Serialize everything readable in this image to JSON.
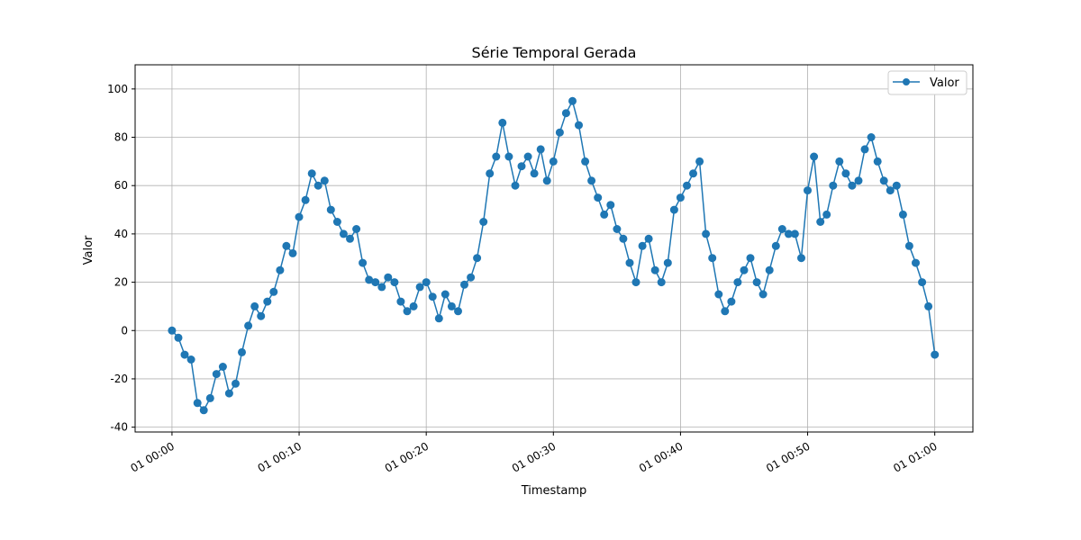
{
  "chart_data": {
    "type": "line",
    "title": "Série Temporal Gerada",
    "xlabel": "Timestamp",
    "ylabel": "Valor",
    "grid": true,
    "legend_position": "top-right",
    "color": "#1f77b4",
    "ylim": [
      -42,
      110
    ],
    "xlim_minutes": [
      -2.9,
      63.0
    ],
    "x_ticks": [
      {
        "minute": 0,
        "label": "01 00:00"
      },
      {
        "minute": 10,
        "label": "01 00:10"
      },
      {
        "minute": 20,
        "label": "01 00:20"
      },
      {
        "minute": 30,
        "label": "01 00:30"
      },
      {
        "minute": 40,
        "label": "01 00:40"
      },
      {
        "minute": 50,
        "label": "01 00:50"
      },
      {
        "minute": 60,
        "label": "01 01:00"
      }
    ],
    "y_ticks": [
      -40,
      -20,
      0,
      20,
      40,
      60,
      80,
      100
    ],
    "series": [
      {
        "name": "Valor",
        "x_unit": "minutes",
        "x": [
          0,
          0.5,
          1,
          1.5,
          2,
          2.5,
          3,
          3.5,
          4,
          4.5,
          5,
          5.5,
          6,
          6.5,
          7,
          7.5,
          8,
          8.5,
          9,
          9.5,
          10,
          10.5,
          11,
          11.5,
          12,
          12.5,
          13,
          13.5,
          14,
          14.5,
          15,
          15.5,
          16,
          16.5,
          17,
          17.5,
          18,
          18.5,
          19,
          19.5,
          20,
          20.5,
          21,
          21.5,
          22,
          22.5,
          23,
          23.5,
          24,
          24.5,
          25,
          25.5,
          26,
          26.5,
          27,
          27.5,
          28,
          28.5,
          29,
          29.5,
          30,
          30.5,
          31,
          31.5,
          32,
          32.5,
          33,
          33.5,
          34,
          34.5,
          35,
          35.5,
          36,
          36.5,
          37,
          37.5,
          38,
          38.5,
          39,
          39.5,
          40,
          40.5,
          41,
          41.5,
          42,
          42.5,
          43,
          43.5,
          44,
          44.5,
          45,
          45.5,
          46,
          46.5,
          47,
          47.5,
          48,
          48.5,
          49,
          49.5,
          50,
          50.5,
          51,
          51.5,
          52,
          52.5,
          53,
          53.5,
          54,
          54.5,
          55,
          55.5,
          56,
          56.5,
          57,
          57.5,
          58,
          58.5,
          59,
          59.5,
          60
        ],
        "values": [
          0,
          -3,
          -10,
          -12,
          -30,
          -33,
          -28,
          -18,
          -15,
          -26,
          -22,
          -9,
          2,
          10,
          6,
          12,
          16,
          25,
          35,
          32,
          47,
          54,
          65,
          60,
          62,
          50,
          45,
          40,
          38,
          42,
          28,
          21,
          20,
          18,
          22,
          20,
          12,
          8,
          10,
          18,
          20,
          14,
          5,
          15,
          10,
          8,
          19,
          22,
          30,
          45,
          65,
          72,
          86,
          72,
          60,
          68,
          72,
          65,
          75,
          62,
          70,
          82,
          90,
          95,
          85,
          70,
          62,
          55,
          48,
          52,
          42,
          38,
          28,
          20,
          35,
          38,
          25,
          20,
          28,
          50,
          55,
          60,
          65,
          70,
          40,
          30,
          15,
          8,
          12,
          20,
          25,
          30,
          20,
          15,
          25,
          35,
          42,
          40,
          40,
          30,
          58,
          72,
          45,
          48,
          60,
          70,
          65,
          60,
          62,
          75,
          80,
          70,
          62,
          58,
          60,
          48,
          35,
          28,
          20,
          10,
          -10
        ]
      }
    ]
  }
}
